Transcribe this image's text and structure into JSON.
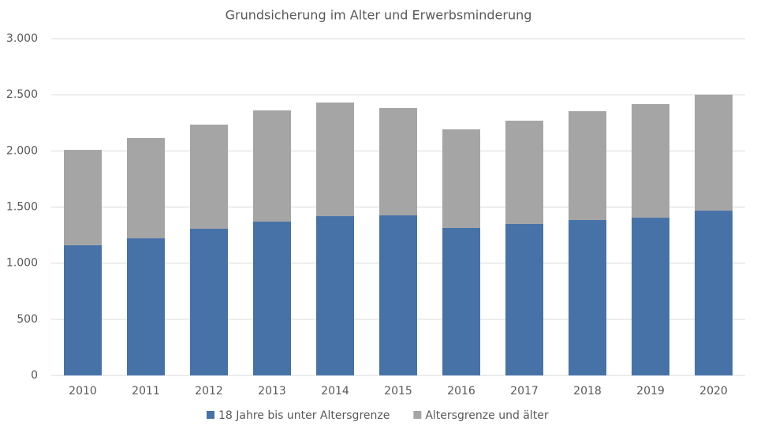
{
  "chart_data": {
    "type": "stacked_bar",
    "title": "Grundsicherung im Alter und Erwerbsminderung",
    "categories": [
      "2010",
      "2011",
      "2012",
      "2013",
      "2014",
      "2015",
      "2016",
      "2017",
      "2018",
      "2019",
      "2020"
    ],
    "series": [
      {
        "name": "18 Jahre bis unter Altersgrenze",
        "color": "#4672a8",
        "values": [
          1160,
          1222,
          1307,
          1370,
          1419,
          1426,
          1314,
          1349,
          1384,
          1405,
          1468
        ]
      },
      {
        "name": "Altersgrenze und älter",
        "color": "#a5a5a5",
        "values": [
          849,
          893,
          927,
          991,
          1012,
          956,
          878,
          920,
          970,
          1012,
          1033
        ]
      }
    ],
    "ylim": [
      0,
      3000
    ],
    "yticks": [
      0,
      500,
      {
        "value": 1000,
        "label": "1.000"
      },
      {
        "value": 1500,
        "label": "1.500"
      },
      {
        "value": 2000,
        "label": "2.000"
      },
      {
        "value": 2500,
        "label": "2.500"
      },
      {
        "value": 3000,
        "label": "3.000"
      }
    ],
    "grid": true,
    "legend": "bottom"
  }
}
